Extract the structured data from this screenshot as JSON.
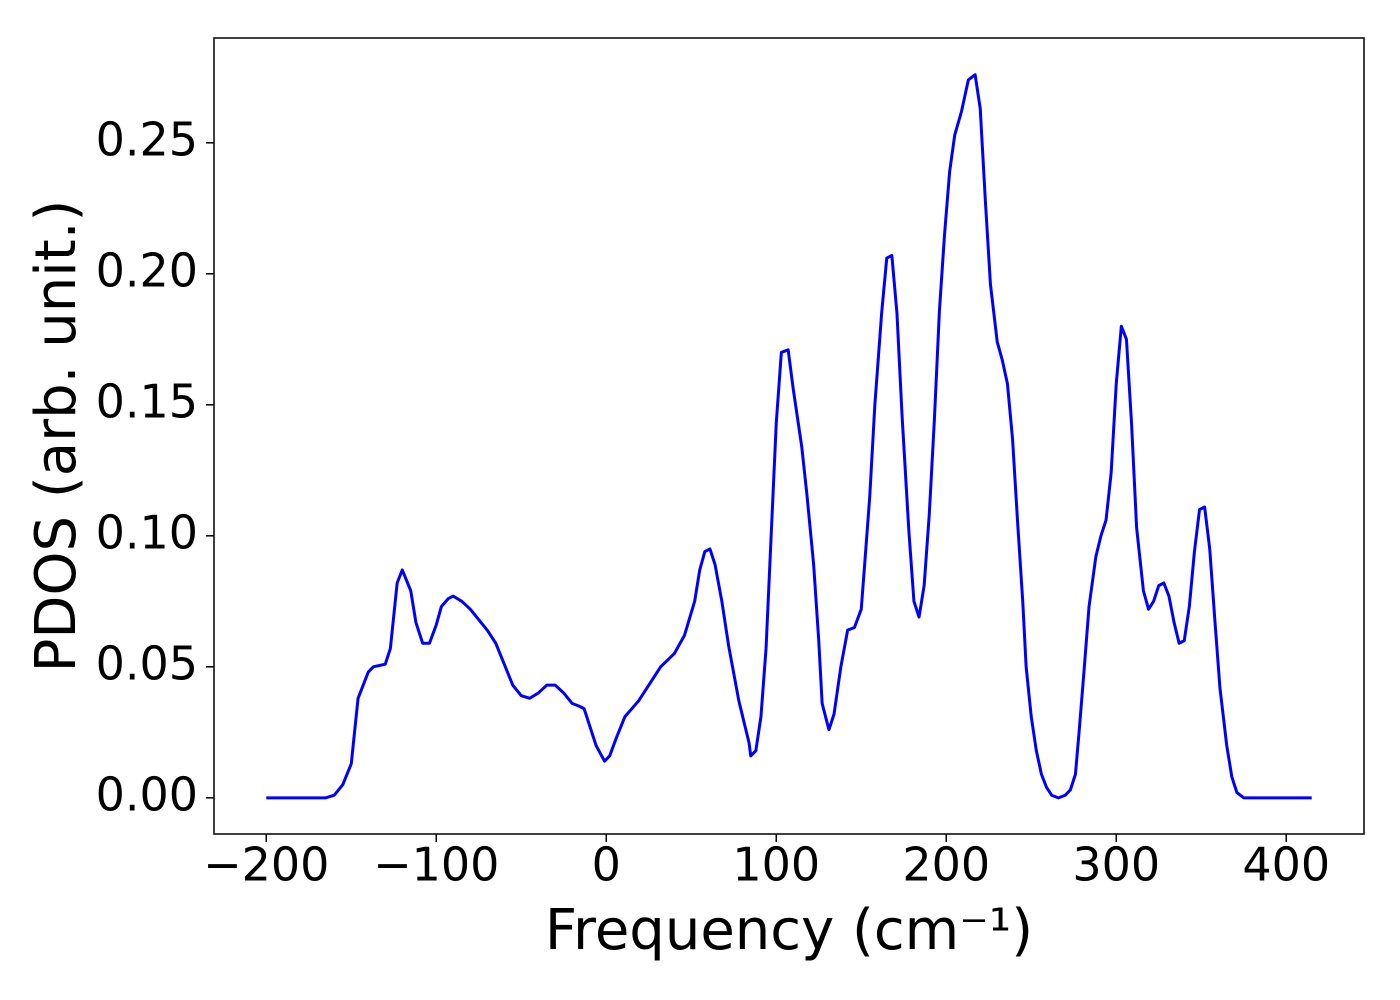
{
  "chart_data": {
    "type": "line",
    "x_label": "Frequency (cm⁻¹)",
    "y_label": "PDOS (arb. unit.)",
    "color": "#0000ff",
    "x": [
      -200,
      -180,
      -165,
      -160,
      -155,
      -150,
      -146,
      -140,
      -137,
      -130,
      -127,
      -123,
      -120,
      -115,
      -112,
      -108,
      -104,
      -100,
      -97,
      -93,
      -90,
      -85,
      -80,
      -75,
      -70,
      -65,
      -60,
      -55,
      -50,
      -45,
      -40,
      -35,
      -30,
      -25,
      -20,
      -16,
      -13,
      -10,
      -6,
      -1,
      2,
      6,
      11,
      19,
      25,
      32,
      40,
      46,
      52,
      55,
      58,
      61,
      64,
      68,
      72,
      78,
      81,
      84,
      85,
      88,
      91,
      94,
      97,
      100,
      103,
      107,
      110,
      115,
      118,
      122,
      125,
      127,
      131,
      134,
      138,
      142,
      146,
      150,
      152,
      155,
      158,
      162,
      165,
      168,
      171,
      174,
      178,
      181,
      184,
      187,
      190,
      193,
      196,
      199,
      202,
      205,
      209,
      213,
      217,
      220,
      223,
      226,
      230,
      233,
      236,
      239,
      242,
      245,
      247,
      250,
      253,
      256,
      259,
      262,
      266,
      270,
      273,
      276,
      278,
      281,
      284,
      288,
      291,
      294,
      297,
      300,
      303,
      306,
      309,
      312,
      316,
      319,
      322,
      325,
      328,
      331,
      334,
      337,
      340,
      343,
      346,
      349,
      352,
      355,
      358,
      361,
      365,
      368,
      371,
      375,
      390,
      415
    ],
    "values": [
      0,
      0,
      0,
      0.001,
      0.005,
      0.013,
      0.038,
      0.048,
      0.05,
      0.051,
      0.057,
      0.082,
      0.087,
      0.079,
      0.067,
      0.059,
      0.059,
      0.066,
      0.073,
      0.076,
      0.077,
      0.075,
      0.072,
      0.068,
      0.064,
      0.059,
      0.051,
      0.043,
      0.039,
      0.038,
      0.04,
      0.043,
      0.043,
      0.04,
      0.036,
      0.035,
      0.034,
      0.028,
      0.02,
      0.014,
      0.016,
      0.023,
      0.031,
      0.037,
      0.043,
      0.05,
      0.055,
      0.062,
      0.075,
      0.087,
      0.094,
      0.095,
      0.089,
      0.075,
      0.058,
      0.037,
      0.029,
      0.021,
      0.016,
      0.018,
      0.031,
      0.057,
      0.1,
      0.143,
      0.17,
      0.171,
      0.156,
      0.134,
      0.116,
      0.089,
      0.06,
      0.036,
      0.026,
      0.032,
      0.05,
      0.064,
      0.065,
      0.072,
      0.089,
      0.115,
      0.15,
      0.185,
      0.206,
      0.207,
      0.185,
      0.146,
      0.102,
      0.075,
      0.069,
      0.081,
      0.108,
      0.144,
      0.186,
      0.215,
      0.239,
      0.253,
      0.262,
      0.274,
      0.276,
      0.263,
      0.228,
      0.196,
      0.174,
      0.167,
      0.158,
      0.137,
      0.105,
      0.075,
      0.05,
      0.031,
      0.018,
      0.009,
      0.004,
      0.001,
      0,
      0.001,
      0.003,
      0.009,
      0.024,
      0.048,
      0.073,
      0.092,
      0.1,
      0.106,
      0.124,
      0.158,
      0.18,
      0.175,
      0.143,
      0.103,
      0.079,
      0.072,
      0.075,
      0.081,
      0.082,
      0.077,
      0.067,
      0.059,
      0.06,
      0.073,
      0.094,
      0.11,
      0.111,
      0.095,
      0.068,
      0.042,
      0.02,
      0.008,
      0.002,
      0,
      0,
      0
    ],
    "xlim": [
      -230.75,
      445.75
    ],
    "ylim": [
      -0.0138,
      0.29
    ],
    "xticks": [
      {
        "value": -200,
        "label": "−200"
      },
      {
        "value": -100,
        "label": "−100"
      },
      0,
      100,
      200,
      300,
      400
    ],
    "yticks": [
      {
        "value": 0,
        "label": "0.00"
      },
      0.05,
      {
        "value": 0.1,
        "label": "0.10"
      },
      0.15,
      {
        "value": 0.2,
        "label": "0.20"
      },
      0.25
    ],
    "grid": false
  }
}
